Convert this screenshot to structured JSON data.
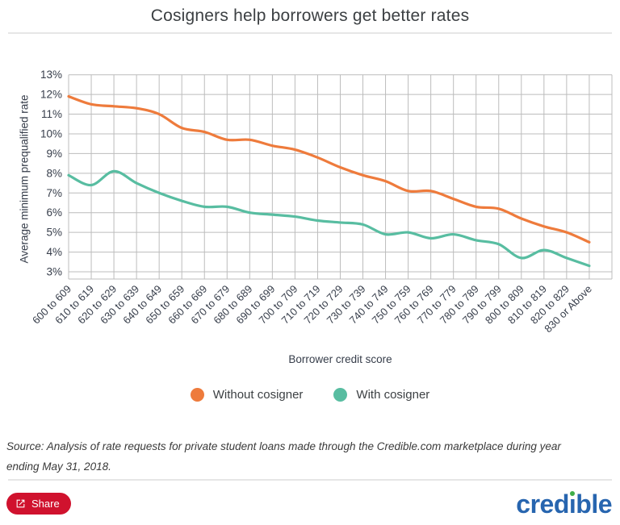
{
  "header": {
    "title": "Cosigners help borrowers get better rates"
  },
  "chart_data": {
    "type": "line",
    "title": "Cosigners help borrowers get better rates",
    "xlabel": "Borrower credit score",
    "ylabel": "Average minimum prequalified rate",
    "categories": [
      "600 to 609",
      "610 to 619",
      "620 to 629",
      "630 to 639",
      "640 to 649",
      "650 to 659",
      "660 to 669",
      "670 to 679",
      "680 to 689",
      "690 to 699",
      "700 to 709",
      "710 to 719",
      "720 to 729",
      "730 to 739",
      "740 to 749",
      "750 to 759",
      "760 to 769",
      "770 to 779",
      "780 to 789",
      "790 to 799",
      "800 to 809",
      "810 to 819",
      "820 to 829",
      "830 or Above"
    ],
    "series": [
      {
        "name": "Without cosigner",
        "color": "#ee7b3c",
        "values": [
          11.9,
          11.5,
          11.4,
          11.3,
          11.0,
          10.3,
          10.1,
          9.7,
          9.7,
          9.4,
          9.2,
          8.8,
          8.3,
          7.9,
          7.6,
          7.1,
          7.1,
          6.7,
          6.3,
          6.2,
          5.7,
          5.3,
          5.0,
          4.5
        ]
      },
      {
        "name": "With cosigner",
        "color": "#58bda1",
        "values": [
          7.9,
          7.4,
          8.1,
          7.5,
          7.0,
          6.6,
          6.3,
          6.3,
          6.0,
          5.9,
          5.8,
          5.6,
          5.5,
          5.4,
          4.9,
          5.0,
          4.7,
          4.9,
          4.6,
          4.4,
          3.7,
          4.1,
          3.7,
          3.3
        ]
      }
    ],
    "y_ticks": [
      "3%",
      "4%",
      "5%",
      "6%",
      "7%",
      "8%",
      "9%",
      "10%",
      "11%",
      "12%",
      "13%"
    ],
    "ylim": [
      2.65,
      13
    ],
    "grid": true,
    "legend_position": "bottom"
  },
  "footer": {
    "source_lines": [
      "Source: Analysis of rate requests for private student loans made through the Credible.com marketplace during year",
      "ending May 31, 2018."
    ],
    "share_label": "Share",
    "logo": {
      "pre": "cred",
      "dotless_i": "ı",
      "post": "ble"
    }
  }
}
